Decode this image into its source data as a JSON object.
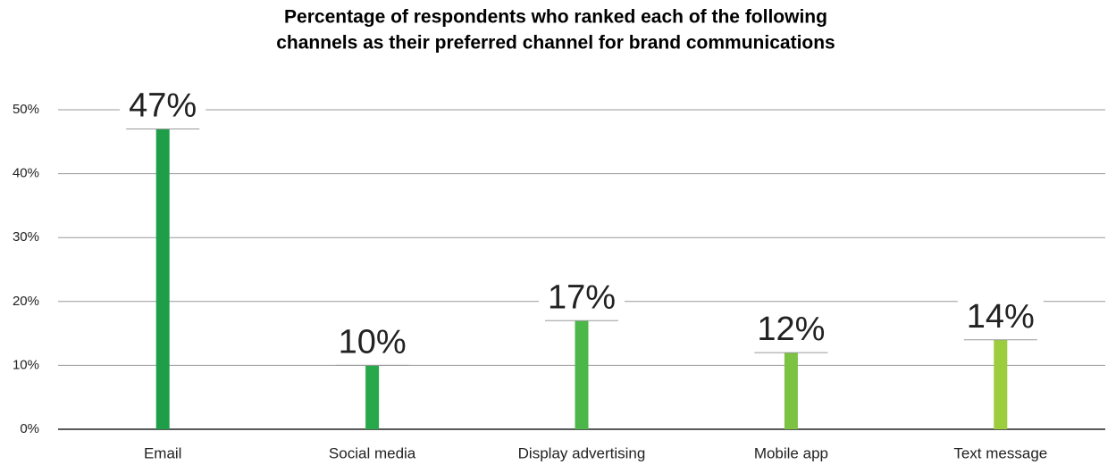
{
  "chart_data": {
    "type": "bar",
    "title": [
      "Percentage of respondents who ranked each of the following",
      "channels as their preferred channel for brand communications"
    ],
    "categories": [
      "Email",
      "Social media",
      "Display advertising",
      "Mobile app",
      "Text message"
    ],
    "values": [
      47,
      10,
      17,
      12,
      14
    ],
    "value_labels": [
      "47%",
      "10%",
      "17%",
      "12%",
      "14%"
    ],
    "colors": [
      "#1e9e48",
      "#27a94b",
      "#4cb749",
      "#7cc243",
      "#9bcd3d"
    ],
    "ylim": [
      0,
      50
    ],
    "yticks": [
      {
        "value": 0,
        "label": "0%"
      },
      {
        "value": 10,
        "label": "10%"
      },
      {
        "value": 20,
        "label": "20%"
      },
      {
        "value": 30,
        "label": "30%"
      },
      {
        "value": 40,
        "label": "40%"
      },
      {
        "value": 50,
        "label": "50%"
      }
    ],
    "grid": true
  }
}
